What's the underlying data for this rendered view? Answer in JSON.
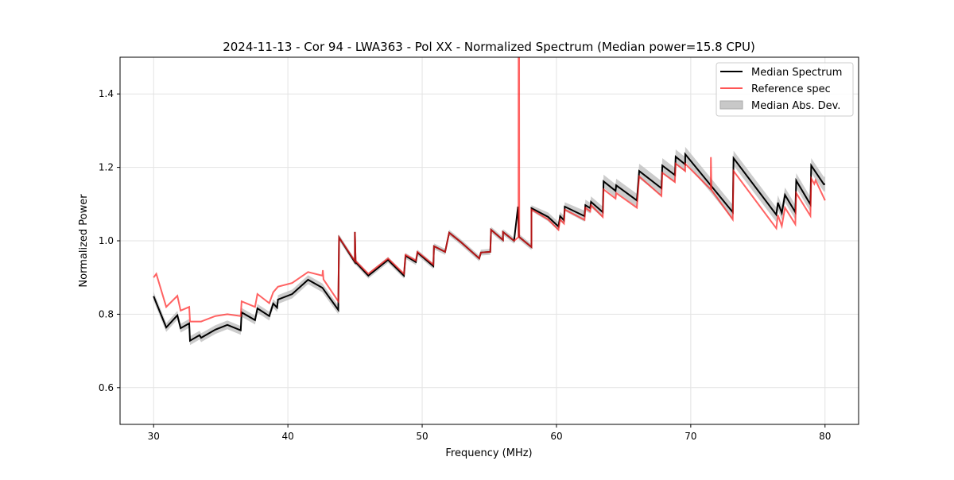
{
  "chart_data": {
    "type": "line",
    "title": "2024-11-13 - Cor 94 - LWA363 - Pol XX - Normalized Spectrum (Median power=15.8 CPU)",
    "xlabel": "Frequency (MHz)",
    "ylabel": "Normalized Power",
    "xlim": [
      27.5,
      82.5
    ],
    "ylim": [
      0.5,
      1.5
    ],
    "grid": true,
    "legend_position": "top-right",
    "xticks": [
      30,
      40,
      50,
      60,
      70,
      80
    ],
    "xtick_labels": [
      "30",
      "40",
      "50",
      "60",
      "70",
      "80"
    ],
    "yticks": [
      0.6,
      0.8,
      1.0,
      1.2,
      1.4
    ],
    "ytick_labels": [
      "0.6",
      "0.8",
      "1.0",
      "1.2",
      "1.4"
    ],
    "legend": [
      "Median Spectrum",
      "Reference spec",
      "Median Abs. Dev."
    ],
    "colors": {
      "median": "#000000",
      "reference": "#ff5555",
      "mad": "#bfbfbf"
    },
    "series": [
      {
        "name": "Median Spectrum",
        "x": [
          30.0,
          30.94,
          31.77,
          32.01,
          32.65,
          32.71,
          33.42,
          33.54,
          34.6,
          35.49,
          36.49,
          36.55,
          37.55,
          37.73,
          38.61,
          38.91,
          39.2,
          39.26,
          40.32,
          41.5,
          42.57,
          43.75,
          43.81,
          44.99,
          44.99,
          45.04,
          45.99,
          47.46,
          48.64,
          48.76,
          49.53,
          49.65,
          50.83,
          50.88,
          51.71,
          52.01,
          52.89,
          54.25,
          54.37,
          55.07,
          55.13,
          56.02,
          56.02,
          56.84,
          57.14,
          57.2,
          58.14,
          58.14,
          59.38,
          60.15,
          60.27,
          60.56,
          60.62,
          62.09,
          62.15,
          62.51,
          62.57,
          63.45,
          63.51,
          64.4,
          64.45,
          65.99,
          66.16,
          67.82,
          67.88,
          68.82,
          68.88,
          69.59,
          69.59,
          73.13,
          73.19,
          76.37,
          76.49,
          76.78,
          77.02,
          77.79,
          77.85,
          78.91,
          78.97,
          79.91,
          80.0
        ],
        "y": [
          0.849,
          0.764,
          0.797,
          0.762,
          0.775,
          0.728,
          0.743,
          0.736,
          0.758,
          0.771,
          0.756,
          0.805,
          0.784,
          0.816,
          0.795,
          0.829,
          0.818,
          0.84,
          0.855,
          0.894,
          0.872,
          0.812,
          1.009,
          0.942,
          1.024,
          0.942,
          0.905,
          0.948,
          0.905,
          0.959,
          0.942,
          0.968,
          0.931,
          0.985,
          0.97,
          1.022,
          0.996,
          0.952,
          0.968,
          0.97,
          1.03,
          1.002,
          1.024,
          1.0,
          1.093,
          1.011,
          0.983,
          1.089,
          1.065,
          1.039,
          1.067,
          1.056,
          1.093,
          1.067,
          1.097,
          1.089,
          1.106,
          1.078,
          1.162,
          1.136,
          1.151,
          1.11,
          1.19,
          1.143,
          1.205,
          1.179,
          1.229,
          1.208,
          1.236,
          1.078,
          1.225,
          1.071,
          1.104,
          1.076,
          1.125,
          1.078,
          1.164,
          1.099,
          1.205,
          1.154,
          1.155
        ],
        "mad": [
          0.012,
          0.012,
          0.012,
          0.012,
          0.012,
          0.012,
          0.012,
          0.012,
          0.012,
          0.012,
          0.012,
          0.012,
          0.012,
          0.012,
          0.012,
          0.012,
          0.012,
          0.012,
          0.012,
          0.012,
          0.012,
          0.012,
          0.008,
          0.008,
          0.008,
          0.008,
          0.008,
          0.008,
          0.008,
          0.008,
          0.008,
          0.008,
          0.008,
          0.008,
          0.008,
          0.008,
          0.008,
          0.008,
          0.008,
          0.008,
          0.008,
          0.008,
          0.008,
          0.008,
          0.008,
          0.008,
          0.008,
          0.008,
          0.012,
          0.012,
          0.012,
          0.012,
          0.012,
          0.015,
          0.015,
          0.015,
          0.015,
          0.015,
          0.018,
          0.018,
          0.018,
          0.018,
          0.02,
          0.02,
          0.02,
          0.02,
          0.02,
          0.02,
          0.02,
          0.02,
          0.02,
          0.02,
          0.02,
          0.02,
          0.02,
          0.02,
          0.02,
          0.02,
          0.02,
          0.02,
          0.02
        ]
      },
      {
        "name": "Reference spec",
        "x": [
          30.0,
          30.2,
          30.94,
          31.77,
          32.01,
          32.65,
          32.71,
          33.54,
          34.6,
          35.49,
          36.49,
          36.55,
          37.55,
          37.73,
          38.61,
          38.91,
          39.26,
          40.32,
          41.5,
          42.57,
          42.6,
          42.65,
          43.75,
          43.81,
          44.99,
          44.99,
          45.04,
          45.99,
          47.46,
          48.64,
          48.76,
          49.53,
          49.65,
          50.83,
          50.88,
          51.71,
          52.01,
          52.89,
          54.25,
          54.37,
          55.07,
          55.13,
          56.02,
          56.02,
          56.84,
          57.17,
          57.18,
          57.22,
          57.23,
          58.14,
          58.14,
          59.38,
          60.15,
          60.27,
          60.56,
          60.62,
          62.09,
          62.15,
          62.51,
          62.57,
          63.45,
          63.51,
          64.4,
          64.45,
          65.99,
          66.16,
          67.82,
          67.88,
          68.82,
          68.88,
          69.59,
          69.59,
          71.49,
          71.5,
          71.55,
          73.13,
          73.19,
          76.37,
          76.49,
          76.78,
          77.02,
          77.79,
          77.85,
          78.91,
          78.97,
          79.2,
          79.3,
          80.0
        ],
        "y": [
          0.9,
          0.91,
          0.82,
          0.85,
          0.81,
          0.82,
          0.78,
          0.78,
          0.795,
          0.8,
          0.795,
          0.835,
          0.82,
          0.855,
          0.83,
          0.86,
          0.875,
          0.885,
          0.915,
          0.905,
          0.92,
          0.895,
          0.835,
          1.009,
          0.945,
          1.024,
          0.945,
          0.91,
          0.952,
          0.91,
          0.962,
          0.946,
          0.97,
          0.935,
          0.985,
          0.97,
          1.022,
          0.996,
          0.952,
          0.968,
          0.97,
          1.03,
          1.002,
          1.024,
          1.0,
          1.01,
          1.5,
          1.5,
          1.01,
          0.983,
          1.085,
          1.058,
          1.03,
          1.058,
          1.047,
          1.085,
          1.057,
          1.09,
          1.08,
          1.097,
          1.065,
          1.14,
          1.115,
          1.13,
          1.09,
          1.175,
          1.122,
          1.185,
          1.16,
          1.21,
          1.19,
          1.21,
          1.14,
          1.228,
          1.138,
          1.058,
          1.19,
          1.034,
          1.07,
          1.04,
          1.09,
          1.045,
          1.13,
          1.068,
          1.17,
          1.155,
          1.165,
          1.11
        ]
      }
    ]
  }
}
